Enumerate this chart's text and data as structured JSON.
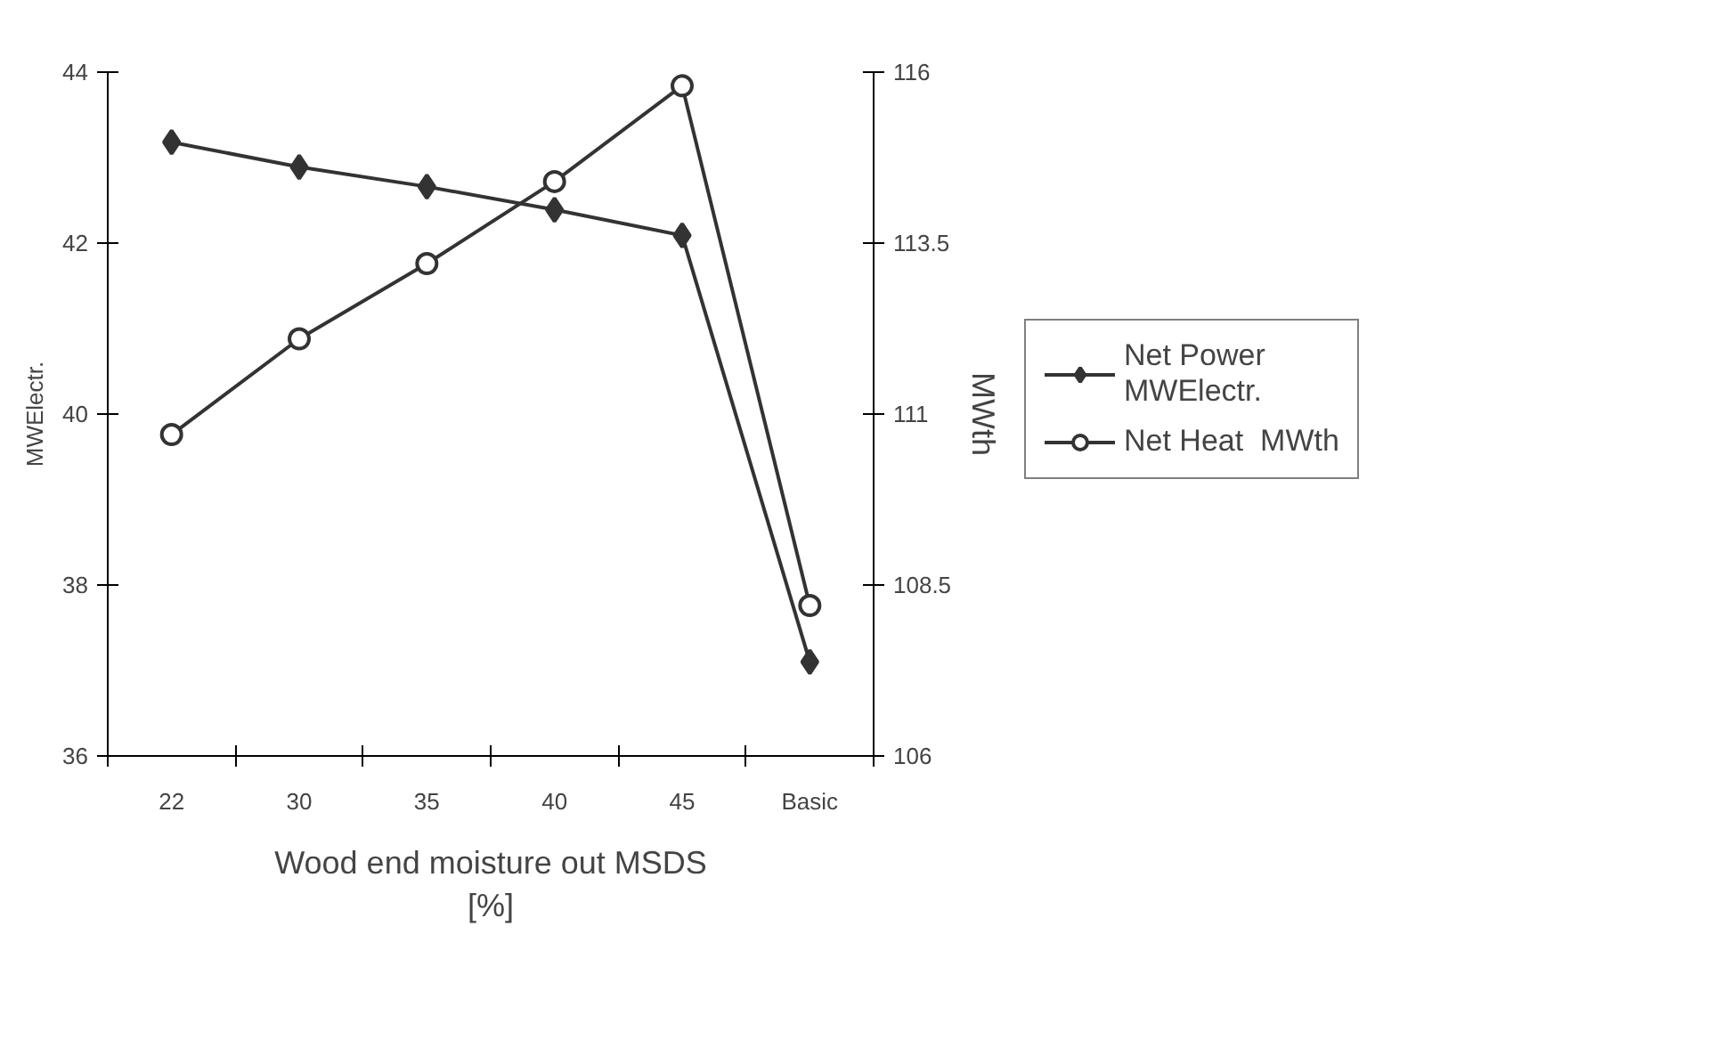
{
  "chart_data": {
    "type": "line",
    "xlabel": "Wood end moisture out MSDS\n[%]",
    "ylabel": "MWElectr.",
    "y2label": "MWth",
    "categories": [
      "22",
      "30",
      "35",
      "40",
      "45",
      "Basic"
    ],
    "ylim": [
      36,
      44
    ],
    "yticks": [
      36,
      38,
      40,
      42,
      44
    ],
    "y2lim": [
      106,
      116
    ],
    "y2ticks": [
      106,
      108.5,
      111,
      113.5,
      116
    ],
    "series": [
      {
        "name": "Net Power\nMWElectr.",
        "color": "#333333",
        "marker": "diamond",
        "values": [
          43.18,
          42.89,
          42.66,
          42.39,
          42.09,
          37.1
        ]
      },
      {
        "name": "Net Heat  MWth",
        "color": "#333333",
        "marker": "circle",
        "axis": "y2",
        "values": [
          110.7,
          112.1,
          113.2,
          114.4,
          115.8,
          108.2
        ]
      }
    ],
    "grid": false,
    "legend": "right"
  }
}
